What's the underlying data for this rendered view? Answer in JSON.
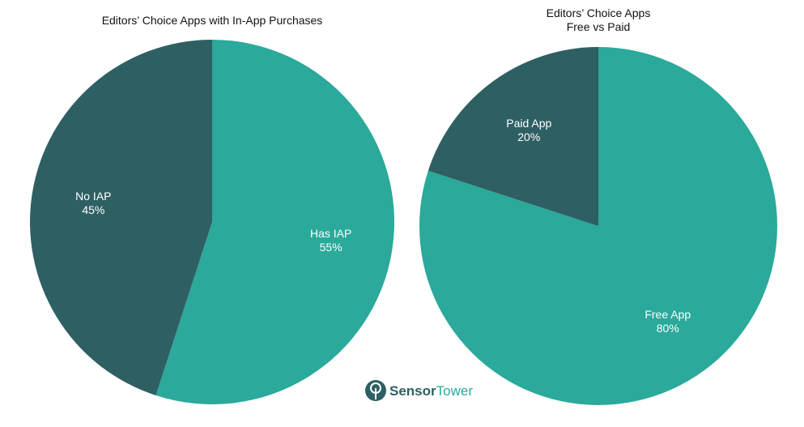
{
  "chart_data": [
    {
      "type": "pie",
      "title": "Editors’ Choice Apps with In-App Purchases",
      "categories": [
        "Has IAP",
        "No IAP"
      ],
      "values": [
        55,
        45
      ],
      "labels": [
        "55%",
        "45%"
      ],
      "colors": [
        "#2BA99B",
        "#2E5F63"
      ],
      "start_angle_deg": 0,
      "direction": "clockwise"
    },
    {
      "type": "pie",
      "title": "Editors’ Choice Apps",
      "subtitle": "Free vs Paid",
      "categories": [
        "Free App",
        "Paid App"
      ],
      "values": [
        80,
        20
      ],
      "labels": [
        "80%",
        "20%"
      ],
      "colors": [
        "#2BA99B",
        "#2E5F63"
      ],
      "start_angle_deg": 0,
      "direction": "clockwise"
    }
  ],
  "brand": {
    "name_part1": "Sensor",
    "name_part2": "Tower",
    "color_dark": "#2E5F63",
    "color_accent": "#2BA99B"
  }
}
